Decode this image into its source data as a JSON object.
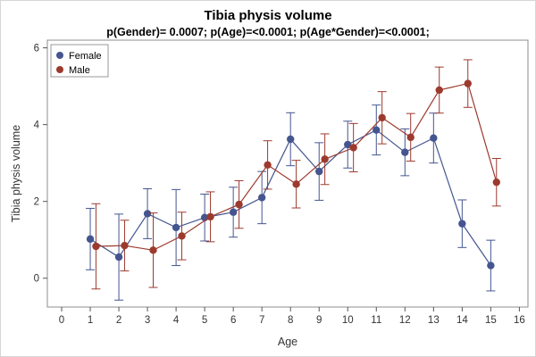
{
  "chart_data": {
    "type": "line",
    "title": "Tibia physis volume",
    "subtitle": "p(Gender)= 0.0007; p(Age)=<0.0001; p(Age*Gender)=<0.0001;",
    "xlabel": "Age",
    "ylabel": "Tibia physis volume",
    "xlim": [
      -0.5,
      16.3
    ],
    "ylim": [
      -0.75,
      6.2
    ],
    "xticks": [
      0,
      1,
      2,
      3,
      4,
      5,
      6,
      7,
      8,
      9,
      10,
      11,
      12,
      13,
      14,
      15,
      16
    ],
    "yticks": [
      0,
      2,
      4,
      6
    ],
    "legend_position": "top-left",
    "grid": false,
    "series": [
      {
        "name": "Female",
        "color": "#44558f",
        "x": [
          1,
          2,
          3,
          4,
          5,
          6,
          7,
          8,
          9,
          10,
          11,
          12,
          13,
          14,
          15
        ],
        "y": [
          1.02,
          0.55,
          1.68,
          1.32,
          1.58,
          1.72,
          2.1,
          3.62,
          2.78,
          3.48,
          3.86,
          3.28,
          3.65,
          1.42,
          0.33
        ],
        "lower": [
          0.22,
          -0.57,
          1.03,
          0.33,
          0.97,
          1.07,
          1.42,
          2.93,
          2.03,
          2.87,
          3.21,
          2.67,
          3.0,
          0.8,
          -0.33
        ],
        "upper": [
          1.82,
          1.67,
          2.33,
          2.31,
          2.19,
          2.37,
          2.78,
          4.31,
          3.53,
          4.09,
          4.51,
          3.89,
          4.3,
          2.04,
          0.99
        ]
      },
      {
        "name": "Male",
        "color": "#9c3a2e",
        "x": [
          1.2,
          2.2,
          3.2,
          4.2,
          5.2,
          6.2,
          7.2,
          8.2,
          9.2,
          10.2,
          11.2,
          12.2,
          13.2,
          14.2,
          15.2
        ],
        "y": [
          0.83,
          0.85,
          0.73,
          1.1,
          1.6,
          1.92,
          2.95,
          2.45,
          3.1,
          3.4,
          4.18,
          3.67,
          4.9,
          5.07,
          2.5
        ],
        "lower": [
          -0.28,
          0.19,
          -0.24,
          0.48,
          0.95,
          1.3,
          2.32,
          1.83,
          2.44,
          2.77,
          3.5,
          3.05,
          4.3,
          4.45,
          1.88
        ],
        "upper": [
          1.94,
          1.51,
          1.7,
          1.72,
          2.25,
          2.54,
          3.58,
          3.07,
          3.76,
          4.03,
          4.86,
          4.29,
          5.5,
          5.69,
          3.12
        ]
      }
    ]
  }
}
